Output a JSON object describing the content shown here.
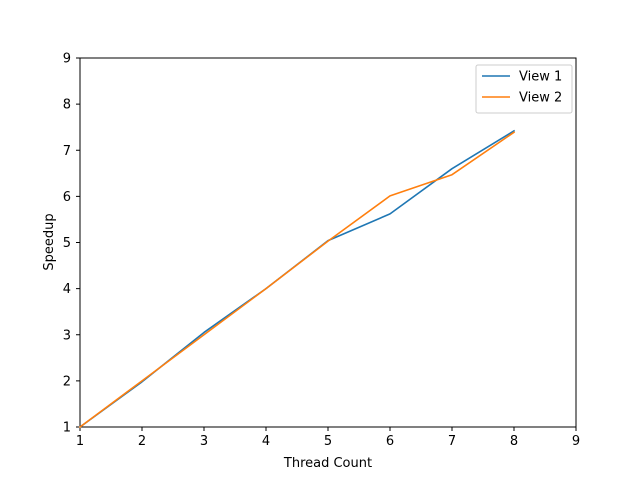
{
  "chart_data": {
    "type": "line",
    "title": "",
    "xlabel": "Thread Count",
    "ylabel": "Speedup",
    "xlim": [
      1,
      9
    ],
    "ylim": [
      1,
      9
    ],
    "xticks": [
      1,
      2,
      3,
      4,
      5,
      6,
      7,
      8,
      9
    ],
    "yticks": [
      1,
      2,
      3,
      4,
      5,
      6,
      7,
      8,
      9
    ],
    "grid": false,
    "legend_position": "top-right",
    "x": [
      1,
      2,
      3,
      4,
      5,
      6,
      7,
      8
    ],
    "series": [
      {
        "name": "View 1",
        "color": "#1f77b4",
        "values": [
          1.0,
          1.98,
          3.05,
          4.0,
          5.04,
          5.62,
          6.6,
          7.42
        ]
      },
      {
        "name": "View 2",
        "color": "#ff7f0e",
        "values": [
          1.0,
          2.0,
          3.0,
          4.0,
          5.03,
          6.01,
          6.47,
          7.39
        ]
      }
    ]
  }
}
